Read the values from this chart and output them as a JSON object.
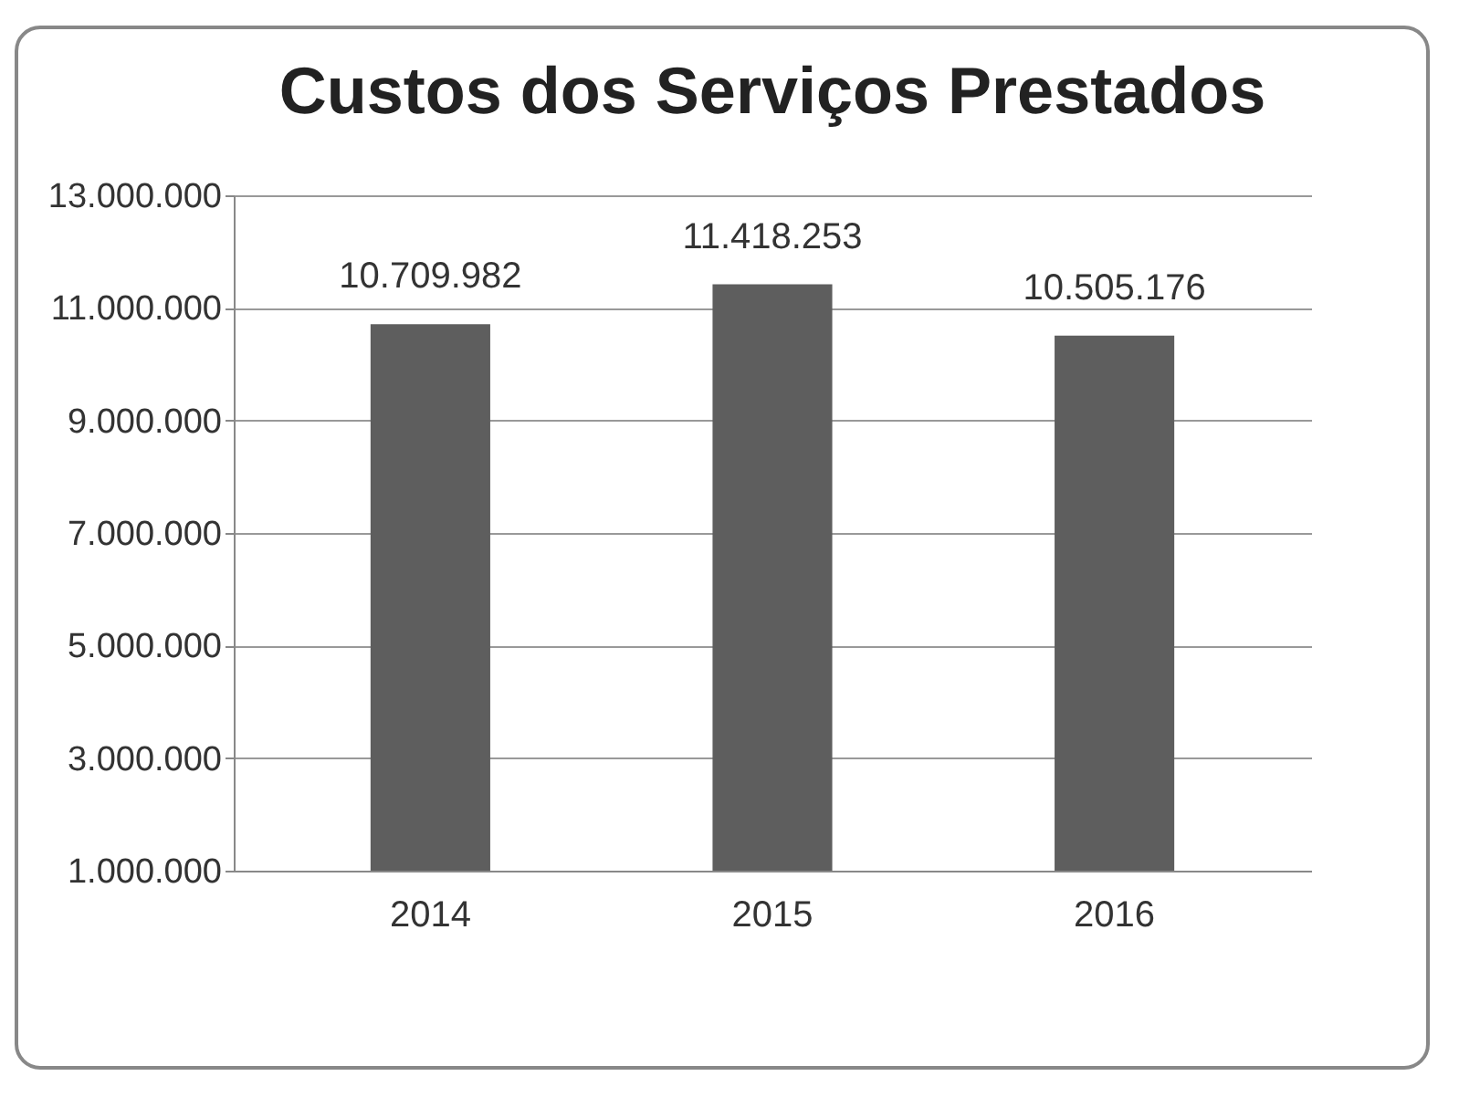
{
  "chart_data": {
    "type": "bar",
    "title": "Custos dos Serviços Prestados",
    "categories": [
      "2014",
      "2015",
      "2016"
    ],
    "values": [
      10709982,
      11418253,
      10505176
    ],
    "value_labels": [
      "10.709.982",
      "11.418.253",
      "10.505.176"
    ],
    "color": "#5e5e5e",
    "ylim": [
      1000000,
      13000000
    ],
    "yticks": [
      {
        "value": 1000000,
        "label": "1.000.000"
      },
      {
        "value": 3000000,
        "label": "3.000.000"
      },
      {
        "value": 5000000,
        "label": "5.000.000"
      },
      {
        "value": 7000000,
        "label": "7.000.000"
      },
      {
        "value": 9000000,
        "label": "9.000.000"
      },
      {
        "value": 11000000,
        "label": "11.000.000"
      },
      {
        "value": 13000000,
        "label": "13.000.000"
      }
    ],
    "grid": "y"
  }
}
